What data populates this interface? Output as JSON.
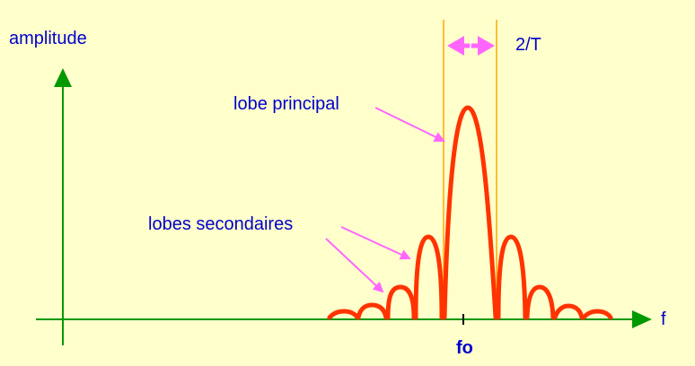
{
  "labels": {
    "y_axis": "amplitude",
    "x_axis": "f",
    "center_freq": "fo",
    "width": "2/T",
    "main_lobe": "lobe principal",
    "side_lobes": "lobes secondaires"
  },
  "colors": {
    "background": "#ffffcc",
    "axis": "#009900",
    "curve": "#ff3300",
    "arrow": "#ff66ff",
    "guide": "#ffaa00",
    "text": "#0000cc"
  }
}
